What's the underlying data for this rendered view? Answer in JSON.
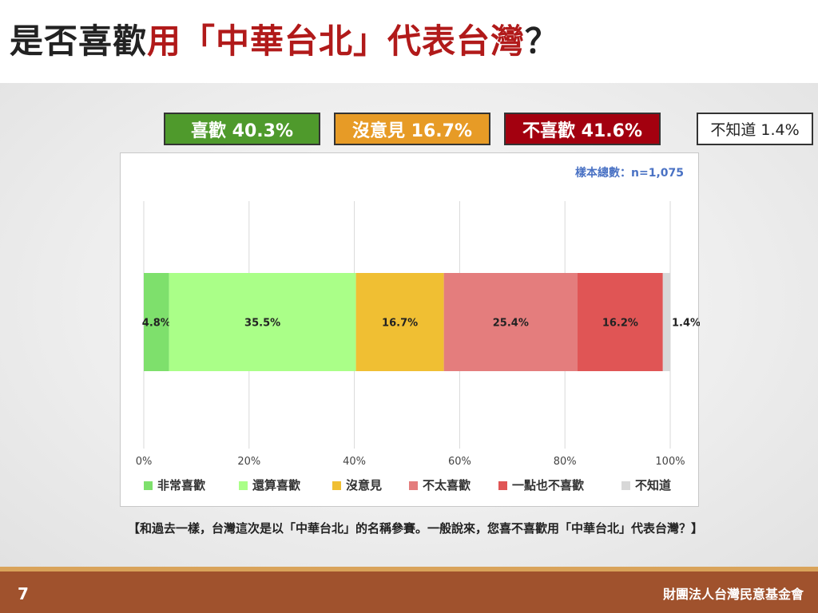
{
  "header": {
    "title_part1": "是否喜歡",
    "title_part2": "用「中華台北」代表台灣",
    "title_part3": "？"
  },
  "summary": [
    {
      "label": "喜歡 40.3%",
      "bg": "#4f9a2c",
      "color": "#ffffff"
    },
    {
      "label": "沒意見 16.7%",
      "bg": "#e79b26",
      "color": "#ffffff"
    },
    {
      "label": "不喜歡 41.6%",
      "bg": "#a3000f",
      "color": "#ffffff"
    },
    {
      "label": "不知道 1.4%",
      "bg": "#ffffff",
      "color": "#222222"
    }
  ],
  "chart_data": {
    "type": "bar",
    "orientation": "horizontal-stacked-100",
    "sample_label": "樣本總數：n=1,075",
    "xlim": [
      0,
      100
    ],
    "x_ticks": [
      "0%",
      "20%",
      "40%",
      "60%",
      "80%",
      "100%"
    ],
    "grid": true,
    "legend_position": "bottom",
    "series": [
      {
        "name": "非常喜歡",
        "value": 4.8,
        "label": "4.8%",
        "color": "#7ee06c"
      },
      {
        "name": "還算喜歡",
        "value": 35.5,
        "label": "35.5%",
        "color": "#aaff88"
      },
      {
        "name": "沒意見",
        "value": 16.7,
        "label": "16.7%",
        "color": "#f0bf33"
      },
      {
        "name": "不太喜歡",
        "value": 25.4,
        "label": "25.4%",
        "color": "#e47d7d"
      },
      {
        "name": "一點也不喜歡",
        "value": 16.2,
        "label": "16.2%",
        "color": "#e05555"
      },
      {
        "name": "不知道",
        "value": 1.4,
        "label": "1.4%",
        "color": "#d8d8d8"
      }
    ]
  },
  "question": "【和過去一樣，台灣這次是以「中華台北」的名稱參賽。一般說來，您喜不喜歡用「中華台北」代表台灣？】",
  "footer": {
    "page_number": "7",
    "organization": "財團法人台灣民意基金會"
  }
}
